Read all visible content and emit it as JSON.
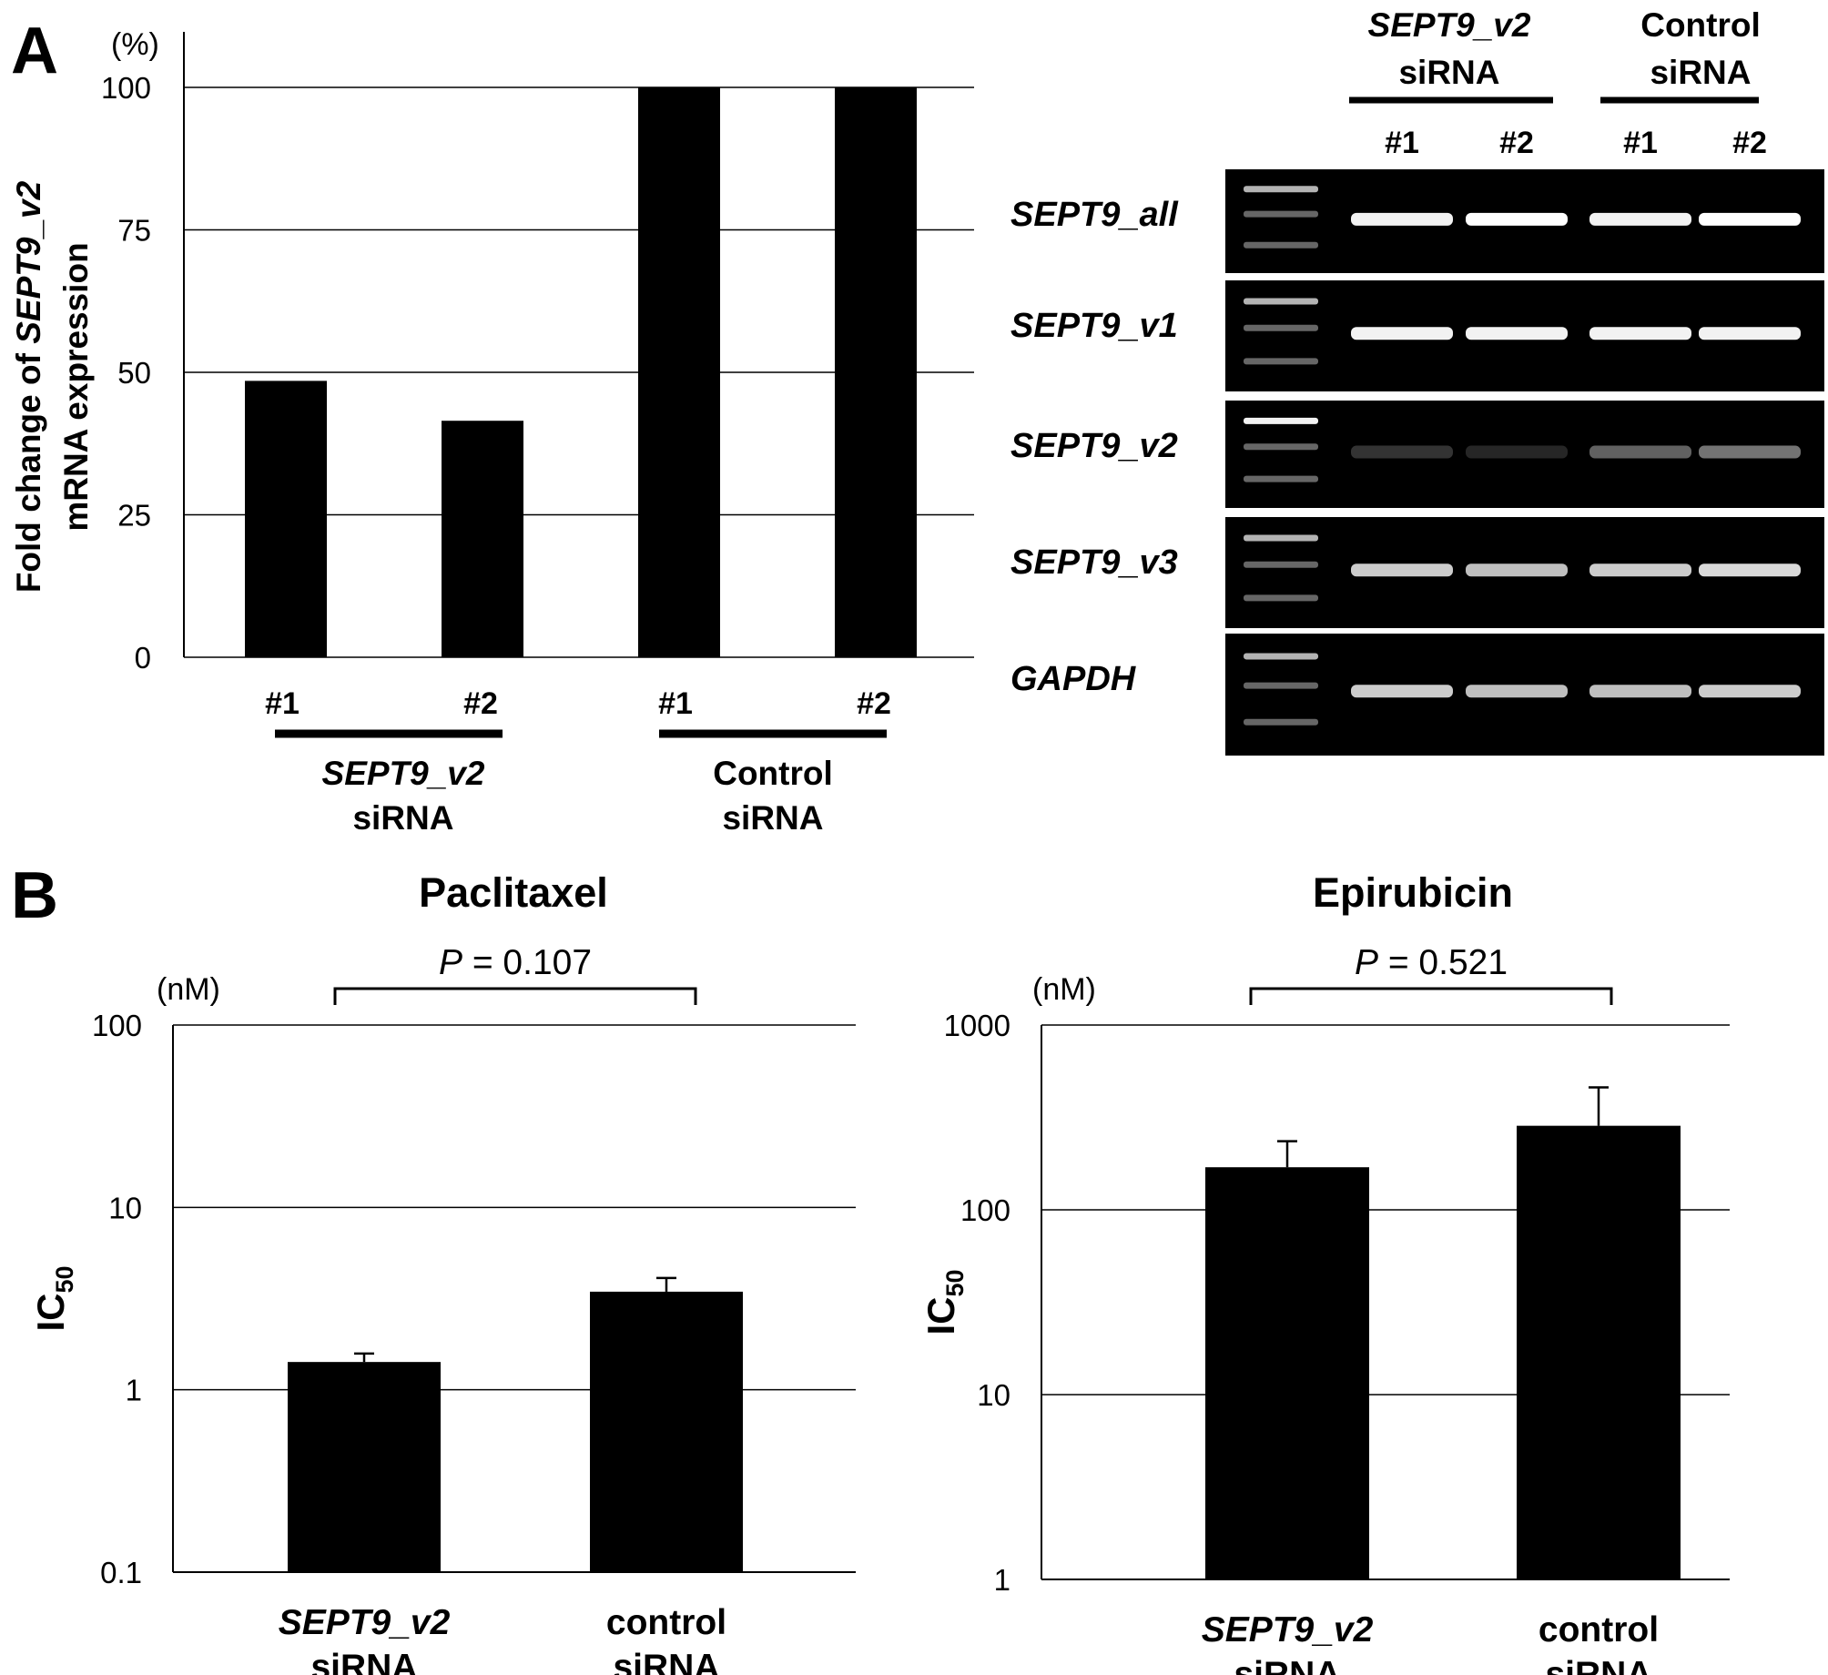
{
  "panel_labels": [
    "A",
    "B"
  ],
  "panelA": {
    "chart_data": {
      "type": "bar",
      "title": "",
      "unit": "(%)",
      "ylabel_line1_pre": "Fold change of ",
      "ylabel_line1_gene": "SEPT9_v2",
      "ylabel_line2": "mRNA expression",
      "ylim": [
        0,
        100
      ],
      "yticks": [
        0,
        25,
        50,
        75,
        100
      ],
      "grid": true,
      "categories": [
        "#1",
        "#2",
        "#1",
        "#2"
      ],
      "values": [
        48.5,
        41.5,
        100,
        100
      ],
      "groups": [
        {
          "line1": "SEPT9_v2",
          "line2": "siRNA",
          "members": [
            0,
            1
          ]
        },
        {
          "line1": "Control",
          "line2": "siRNA",
          "members": [
            2,
            3
          ]
        }
      ]
    }
  },
  "gel": {
    "groups": [
      {
        "line1": "SEPT9_v2",
        "line2": "siRNA"
      },
      {
        "line1": "Control",
        "line2": "siRNA"
      }
    ],
    "lane_labels": [
      "#1",
      "#2",
      "#1",
      "#2"
    ],
    "rows": [
      {
        "label": "SEPT9_all",
        "intensity": [
          0.95,
          1.0,
          0.95,
          1.0
        ]
      },
      {
        "label": "SEPT9_v1",
        "intensity": [
          0.95,
          0.95,
          0.95,
          0.95
        ]
      },
      {
        "label": "SEPT9_v2",
        "intensity": [
          0.2,
          0.15,
          0.38,
          0.45
        ]
      },
      {
        "label": "SEPT9_v3",
        "intensity": [
          0.8,
          0.75,
          0.8,
          0.85
        ]
      },
      {
        "label": "GAPDH",
        "intensity": [
          0.8,
          0.75,
          0.75,
          0.8
        ]
      }
    ],
    "background": "#000000",
    "band_color": "#ffffff"
  },
  "panelB": [
    {
      "chart_data": {
        "type": "bar",
        "title": "Paclitaxel",
        "unit": "(nM)",
        "ylabel": "IC",
        "ylabel_sub": "50",
        "yscale": "log",
        "ylim": [
          0.1,
          100
        ],
        "yticks": [
          0.1,
          1,
          10,
          100
        ],
        "ytick_labels": [
          "0.1",
          "1",
          "10",
          "100"
        ],
        "grid": true,
        "categories": [
          {
            "line1": "SEPT9_v2",
            "line2": "siRNA",
            "line1_italic": true
          },
          {
            "line1": "control",
            "line2": "siRNA",
            "line1_italic": false
          }
        ],
        "values": [
          1.42,
          3.45
        ],
        "errors_upper": [
          1.58,
          4.1
        ],
        "pvalue_label": "P",
        "pvalue_text": " = 0.107"
      }
    },
    {
      "chart_data": {
        "type": "bar",
        "title": "Epirubicin",
        "unit": "(nM)",
        "ylabel": "IC",
        "ylabel_sub": "50",
        "yscale": "log",
        "ylim": [
          1,
          1000
        ],
        "yticks": [
          1,
          10,
          100,
          1000
        ],
        "ytick_labels": [
          "1",
          "10",
          "100",
          "1000"
        ],
        "grid": true,
        "categories": [
          {
            "line1": "SEPT9_v2",
            "line2": "siRNA",
            "line1_italic": true
          },
          {
            "line1": "control",
            "line2": "siRNA",
            "line1_italic": false
          }
        ],
        "values": [
          170,
          285
        ],
        "errors_upper": [
          235,
          460
        ],
        "pvalue_label": "P",
        "pvalue_text": " = 0.521"
      }
    }
  ]
}
